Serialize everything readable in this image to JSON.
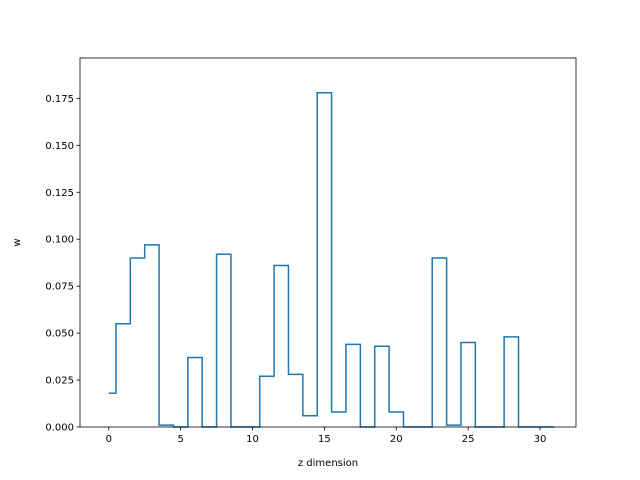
{
  "chart_data": {
    "type": "line",
    "drawstyle": "steps-mid",
    "title": "",
    "xlabel": "z dimension",
    "ylabel": "w",
    "xlim": [
      -2.0,
      32.5
    ],
    "ylim": [
      0.0,
      0.1965
    ],
    "xticks": [
      0,
      5,
      10,
      15,
      20,
      25,
      30
    ],
    "xtick_labels": [
      "0",
      "5",
      "10",
      "15",
      "20",
      "25",
      "30"
    ],
    "yticks": [
      0.0,
      0.025,
      0.05,
      0.075,
      0.1,
      0.125,
      0.15,
      0.175
    ],
    "ytick_labels": [
      "0.000",
      "0.025",
      "0.050",
      "0.075",
      "0.100",
      "0.125",
      "0.150",
      "0.175"
    ],
    "grid": false,
    "line_color": "#1f77b4",
    "series": [
      {
        "x": [
          0,
          1,
          2,
          3,
          4,
          5,
          6,
          7,
          8,
          9,
          10,
          11,
          12,
          13,
          14,
          15,
          16,
          17,
          18,
          19,
          20,
          21,
          22,
          23,
          24,
          25,
          26,
          27,
          28,
          29,
          30,
          31
        ],
        "values": [
          0.018,
          0.055,
          0.09,
          0.097,
          0.001,
          0.0,
          0.037,
          0.0,
          0.092,
          0.0,
          0.0,
          0.027,
          0.086,
          0.028,
          0.006,
          0.178,
          0.008,
          0.044,
          0.0,
          0.043,
          0.008,
          0.0,
          0.0,
          0.09,
          0.001,
          0.045,
          0.0,
          0.0,
          0.048,
          0.0,
          0.0,
          0.0
        ]
      }
    ]
  }
}
